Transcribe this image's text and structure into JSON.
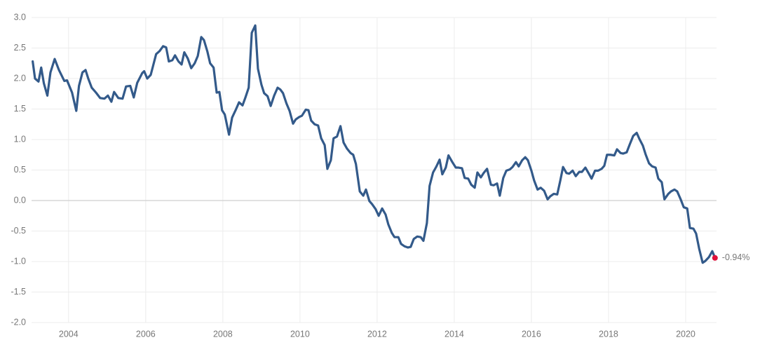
{
  "chart_data": {
    "type": "line",
    "x": [
      2003.07,
      2003.13,
      2003.22,
      2003.29,
      2003.36,
      2003.45,
      2003.53,
      2003.64,
      2003.75,
      2003.89,
      2003.96,
      2004.09,
      2004.2,
      2004.27,
      2004.36,
      2004.44,
      2004.51,
      2004.6,
      2004.71,
      2004.82,
      2004.93,
      2005.02,
      2005.11,
      2005.18,
      2005.29,
      2005.4,
      2005.49,
      2005.6,
      2005.69,
      2005.78,
      2005.91,
      2005.96,
      2006.04,
      2006.13,
      2006.2,
      2006.27,
      2006.36,
      2006.45,
      2006.53,
      2006.6,
      2006.69,
      2006.76,
      2006.85,
      2006.93,
      2007.0,
      2007.09,
      2007.18,
      2007.27,
      2007.35,
      2007.44,
      2007.51,
      2007.6,
      2007.67,
      2007.76,
      2007.84,
      2007.91,
      2007.98,
      2008.05,
      2008.16,
      2008.24,
      2008.33,
      2008.42,
      2008.51,
      2008.58,
      2008.67,
      2008.75,
      2008.84,
      2008.91,
      2009.0,
      2009.07,
      2009.16,
      2009.24,
      2009.33,
      2009.42,
      2009.49,
      2009.56,
      2009.65,
      2009.73,
      2009.82,
      2009.89,
      2009.98,
      2010.05,
      2010.15,
      2010.22,
      2010.29,
      2010.38,
      2010.47,
      2010.55,
      2010.64,
      2010.71,
      2010.8,
      2010.87,
      2010.96,
      2011.05,
      2011.13,
      2011.22,
      2011.31,
      2011.38,
      2011.45,
      2011.55,
      2011.64,
      2011.71,
      2011.8,
      2011.87,
      2011.96,
      2012.04,
      2012.13,
      2012.22,
      2012.29,
      2012.38,
      2012.45,
      2012.55,
      2012.62,
      2012.71,
      2012.8,
      2012.87,
      2012.95,
      2013.04,
      2013.13,
      2013.2,
      2013.29,
      2013.36,
      2013.45,
      2013.53,
      2013.62,
      2013.69,
      2013.78,
      2013.85,
      2013.95,
      2014.04,
      2014.11,
      2014.2,
      2014.27,
      2014.36,
      2014.44,
      2014.53,
      2014.6,
      2014.69,
      2014.76,
      2014.85,
      2014.95,
      2015.02,
      2015.11,
      2015.18,
      2015.27,
      2015.35,
      2015.44,
      2015.51,
      2015.6,
      2015.67,
      2015.76,
      2015.84,
      2015.91,
      2016.0,
      2016.07,
      2016.16,
      2016.24,
      2016.33,
      2016.42,
      2016.49,
      2016.58,
      2016.67,
      2016.75,
      2016.82,
      2016.91,
      2016.98,
      2017.07,
      2017.15,
      2017.24,
      2017.31,
      2017.4,
      2017.49,
      2017.56,
      2017.65,
      2017.73,
      2017.82,
      2017.89,
      2017.96,
      2018.05,
      2018.15,
      2018.22,
      2018.31,
      2018.38,
      2018.47,
      2018.55,
      2018.64,
      2018.73,
      2018.8,
      2018.89,
      2018.96,
      2019.05,
      2019.13,
      2019.22,
      2019.29,
      2019.38,
      2019.45,
      2019.55,
      2019.62,
      2019.71,
      2019.78,
      2019.87,
      2019.95,
      2020.04,
      2020.11,
      2020.2,
      2020.27,
      2020.35,
      2020.44,
      2020.51,
      2020.6,
      2020.69,
      2020.76
    ],
    "series": [
      {
        "color": "#335a8a",
        "marker_color": "#e0103a",
        "values": [
          2.28,
          2.0,
          1.95,
          2.18,
          1.92,
          1.72,
          2.1,
          2.32,
          2.14,
          1.96,
          1.97,
          1.77,
          1.47,
          1.88,
          2.1,
          2.14,
          2.0,
          1.85,
          1.77,
          1.68,
          1.67,
          1.72,
          1.62,
          1.78,
          1.68,
          1.67,
          1.87,
          1.88,
          1.69,
          1.93,
          2.09,
          2.12,
          2.0,
          2.06,
          2.23,
          2.4,
          2.45,
          2.53,
          2.51,
          2.28,
          2.3,
          2.38,
          2.28,
          2.23,
          2.43,
          2.33,
          2.17,
          2.25,
          2.37,
          2.68,
          2.63,
          2.44,
          2.25,
          2.18,
          1.77,
          1.78,
          1.48,
          1.41,
          1.08,
          1.36,
          1.48,
          1.61,
          1.56,
          1.68,
          1.85,
          2.75,
          2.87,
          2.16,
          1.9,
          1.76,
          1.71,
          1.55,
          1.72,
          1.85,
          1.82,
          1.76,
          1.59,
          1.47,
          1.26,
          1.33,
          1.37,
          1.39,
          1.49,
          1.48,
          1.31,
          1.25,
          1.23,
          1.02,
          0.91,
          0.52,
          0.66,
          1.02,
          1.05,
          1.22,
          0.95,
          0.85,
          0.78,
          0.75,
          0.6,
          0.15,
          0.08,
          0.18,
          -0.01,
          -0.06,
          -0.14,
          -0.25,
          -0.13,
          -0.23,
          -0.39,
          -0.53,
          -0.6,
          -0.6,
          -0.71,
          -0.75,
          -0.77,
          -0.76,
          -0.63,
          -0.59,
          -0.6,
          -0.66,
          -0.37,
          0.24,
          0.46,
          0.55,
          0.67,
          0.43,
          0.54,
          0.74,
          0.63,
          0.54,
          0.54,
          0.53,
          0.37,
          0.36,
          0.26,
          0.21,
          0.46,
          0.38,
          0.45,
          0.52,
          0.26,
          0.25,
          0.28,
          0.08,
          0.37,
          0.49,
          0.51,
          0.55,
          0.63,
          0.56,
          0.66,
          0.71,
          0.66,
          0.49,
          0.33,
          0.18,
          0.21,
          0.16,
          0.02,
          0.07,
          0.11,
          0.1,
          0.33,
          0.55,
          0.45,
          0.44,
          0.49,
          0.4,
          0.47,
          0.47,
          0.54,
          0.44,
          0.36,
          0.49,
          0.49,
          0.52,
          0.57,
          0.75,
          0.75,
          0.74,
          0.84,
          0.78,
          0.77,
          0.79,
          0.92,
          1.06,
          1.11,
          1.01,
          0.9,
          0.76,
          0.61,
          0.56,
          0.54,
          0.36,
          0.3,
          0.02,
          0.11,
          0.15,
          0.18,
          0.15,
          0.02,
          -0.11,
          -0.13,
          -0.45,
          -0.46,
          -0.54,
          -0.79,
          -1.02,
          -0.99,
          -0.93,
          -0.83,
          -0.94
        ],
        "value_labels": [
          null,
          null,
          null,
          null,
          null,
          null,
          null,
          null,
          null,
          null,
          null,
          null,
          null,
          null,
          null,
          null,
          null,
          null,
          null,
          null,
          null,
          null,
          null,
          null,
          null,
          null,
          null,
          null,
          null,
          null,
          null,
          null,
          null,
          null,
          null,
          null,
          null,
          null,
          null,
          null,
          null,
          null,
          null,
          null,
          null,
          null,
          null,
          null,
          null,
          null,
          null,
          null,
          null,
          null,
          null,
          null,
          null,
          null,
          null,
          null,
          null,
          null,
          null,
          null,
          null,
          null,
          null,
          null,
          null,
          null,
          null,
          null,
          null,
          null,
          null,
          null,
          null,
          null,
          null,
          null,
          null,
          null,
          null,
          null,
          null,
          null,
          null,
          null,
          null,
          null,
          null,
          null,
          null,
          null,
          null,
          null,
          null,
          null,
          null,
          null,
          null,
          null,
          null,
          null,
          null,
          null,
          null,
          null,
          null,
          null,
          null,
          null,
          null,
          null,
          null,
          null,
          null,
          null,
          null,
          null,
          null,
          null,
          null,
          null,
          null,
          null,
          null,
          null,
          null,
          null,
          null,
          null,
          null,
          null,
          null,
          null,
          null,
          null,
          null,
          null,
          null,
          null,
          null,
          null,
          null,
          null,
          null,
          null,
          null,
          null,
          null,
          null,
          null,
          null,
          null,
          null,
          null,
          null,
          null,
          null,
          null,
          null,
          null,
          null,
          null,
          null,
          null,
          null,
          null,
          null,
          null,
          null,
          null,
          null,
          null,
          null,
          null,
          null,
          null,
          null,
          null,
          null,
          null,
          null,
          null,
          null,
          null,
          null,
          null,
          null,
          null,
          null,
          null,
          null,
          null,
          null,
          null,
          null,
          null,
          null,
          null,
          null,
          null,
          null,
          null,
          null,
          null,
          null,
          null,
          null,
          null,
          "-0.94%"
        ]
      }
    ],
    "xlim": [
      2003.04,
      2020.8
    ],
    "xticks": [
      2004,
      2006,
      2008,
      2010,
      2012,
      2014,
      2016,
      2018,
      2020
    ],
    "ylim": [
      -2,
      3
    ],
    "yticks": [
      {
        "value": -2,
        "label": "-2.0"
      },
      -1.5,
      {
        "value": -1,
        "label": "-1.0"
      },
      -0.5,
      {
        "value": 0,
        "label": "0.0"
      },
      0.5,
      {
        "value": 1,
        "label": "1.0"
      },
      1.5,
      {
        "value": 2,
        "label": "2.0"
      },
      2.5,
      {
        "value": 3,
        "label": "3.0"
      }
    ],
    "grid": true
  }
}
